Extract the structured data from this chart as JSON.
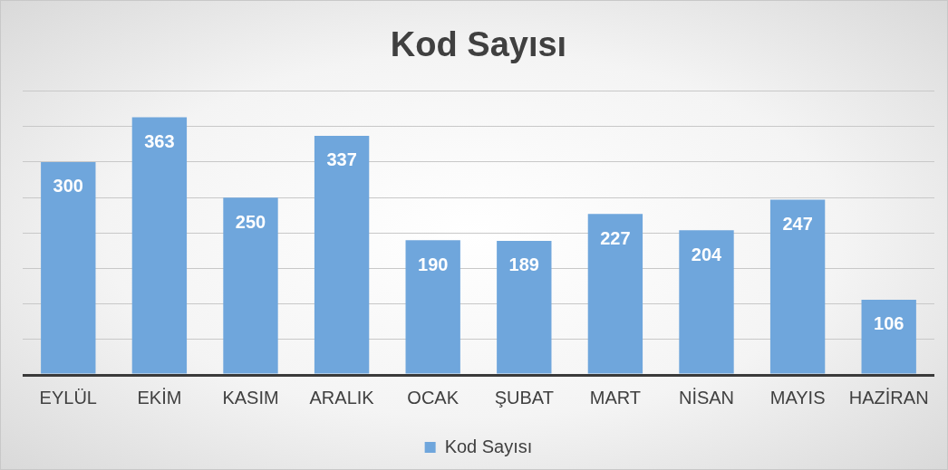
{
  "chart_data": {
    "type": "bar",
    "title": "Kod Sayısı",
    "categories": [
      "EYLÜL",
      "EKİM",
      "KASIM",
      "ARALIK",
      "OCAK",
      "ŞUBAT",
      "MART",
      "NİSAN",
      "MAYIS",
      "HAZİRAN"
    ],
    "series": [
      {
        "name": "Kod Sayısı",
        "color": "#6fa6dc",
        "values": [
          300,
          363,
          250,
          337,
          190,
          189,
          227,
          204,
          247,
          106
        ]
      }
    ],
    "ylim": [
      0,
      400
    ],
    "tick_labels": "x",
    "grid": "y",
    "legend": "bottom",
    "data_labels": true
  }
}
